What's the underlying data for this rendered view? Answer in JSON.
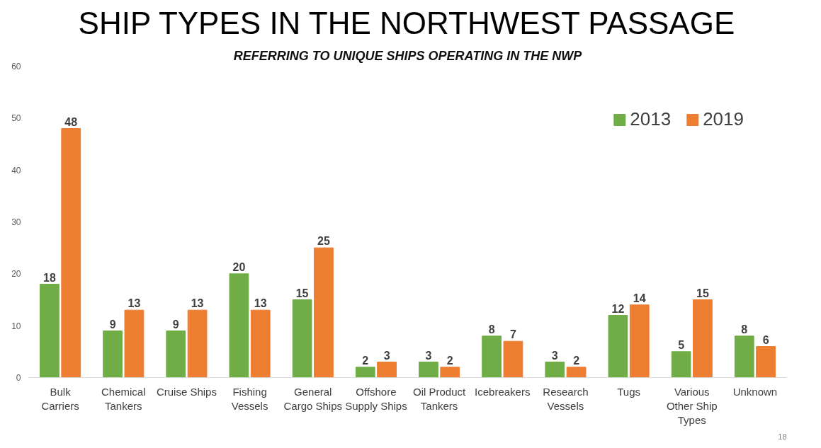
{
  "chart_data": {
    "type": "bar",
    "title": "SHIP TYPES IN THE NORTHWEST PASSAGE",
    "subtitle": "REFERRING TO UNIQUE SHIPS OPERATING IN THE NWP",
    "categories": [
      "Bulk Carriers",
      "Chemical Tankers",
      "Cruise Ships",
      "Fishing Vessels",
      "General Cargo Ships",
      "Offshore Supply Ships",
      "Oil Product Tankers",
      "Icebreakers",
      "Research Vessels",
      "Tugs",
      "Various Other Ship Types",
      "Unknown"
    ],
    "series": [
      {
        "name": "2013",
        "color": "#70ad47",
        "values": [
          18,
          9,
          9,
          20,
          15,
          2,
          3,
          8,
          3,
          12,
          5,
          8
        ]
      },
      {
        "name": "2019",
        "color": "#ed7d31",
        "values": [
          48,
          13,
          13,
          13,
          25,
          3,
          2,
          7,
          2,
          14,
          15,
          6
        ]
      }
    ],
    "ylim": [
      0,
      60
    ],
    "yticks": [
      0,
      10,
      20,
      30,
      40,
      50,
      60
    ],
    "grid": false,
    "legend": "top right",
    "data_labels": true,
    "annotations": [
      "18"
    ]
  }
}
